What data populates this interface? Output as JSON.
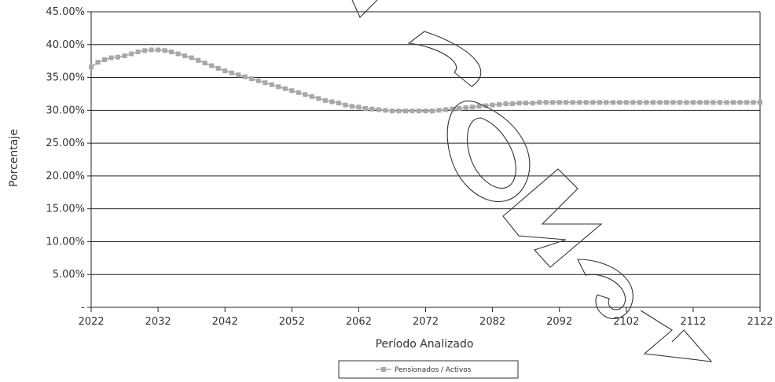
{
  "chart_data": {
    "type": "line",
    "ylabel": "Porcentaje",
    "xlabel": "Período Analizado",
    "xlim": [
      2022,
      2122
    ],
    "ylim": [
      0,
      45
    ],
    "x_ticks": [
      2022,
      2032,
      2042,
      2052,
      2062,
      2072,
      2082,
      2092,
      2102,
      2112,
      2122
    ],
    "y_ticks": [
      {
        "value": 0,
        "label": "-"
      },
      {
        "value": 5,
        "label": "5.00%"
      },
      {
        "value": 10,
        "label": "10.00%"
      },
      {
        "value": 15,
        "label": "15.00%"
      },
      {
        "value": 20,
        "label": "20.00%"
      },
      {
        "value": 25,
        "label": "25.00%"
      },
      {
        "value": 30,
        "label": "30.00%"
      },
      {
        "value": 35,
        "label": "35.00%"
      },
      {
        "value": 40,
        "label": "40.00%"
      },
      {
        "value": 45,
        "label": "45.00%"
      }
    ],
    "grid": true,
    "legend_position": "bottom-center",
    "series": [
      {
        "name": "Pensionados / Activos",
        "color": "#a8a8a8",
        "marker": "square",
        "x": [
          2022,
          2023,
          2024,
          2025,
          2026,
          2027,
          2028,
          2029,
          2030,
          2031,
          2032,
          2033,
          2034,
          2035,
          2036,
          2037,
          2038,
          2039,
          2040,
          2041,
          2042,
          2043,
          2044,
          2045,
          2046,
          2047,
          2048,
          2049,
          2050,
          2051,
          2052,
          2053,
          2054,
          2055,
          2056,
          2057,
          2058,
          2059,
          2060,
          2061,
          2062,
          2063,
          2064,
          2065,
          2066,
          2067,
          2068,
          2069,
          2070,
          2071,
          2072,
          2073,
          2074,
          2075,
          2076,
          2077,
          2078,
          2079,
          2080,
          2081,
          2082,
          2083,
          2084,
          2085,
          2086,
          2087,
          2088,
          2089,
          2090,
          2091,
          2092,
          2093,
          2094,
          2095,
          2096,
          2097,
          2098,
          2099,
          2100,
          2101,
          2102,
          2103,
          2104,
          2105,
          2106,
          2107,
          2108,
          2109,
          2110,
          2111,
          2112,
          2113,
          2114,
          2115,
          2116,
          2117,
          2118,
          2119,
          2120,
          2121,
          2122
        ],
        "values": [
          36.6,
          37.3,
          37.7,
          38.0,
          38.1,
          38.3,
          38.6,
          38.9,
          39.1,
          39.2,
          39.2,
          39.1,
          38.9,
          38.6,
          38.3,
          38.0,
          37.6,
          37.2,
          36.8,
          36.4,
          36.0,
          35.7,
          35.4,
          35.1,
          34.8,
          34.5,
          34.2,
          33.9,
          33.6,
          33.3,
          33.0,
          32.7,
          32.4,
          32.1,
          31.8,
          31.5,
          31.3,
          31.1,
          30.8,
          30.6,
          30.5,
          30.3,
          30.2,
          30.1,
          30.0,
          29.9,
          29.9,
          29.9,
          29.9,
          29.9,
          29.9,
          29.9,
          30.0,
          30.1,
          30.2,
          30.3,
          30.4,
          30.5,
          30.6,
          30.7,
          30.8,
          30.9,
          31.0,
          31.0,
          31.1,
          31.1,
          31.1,
          31.2,
          31.2,
          31.2,
          31.2,
          31.2,
          31.2,
          31.2,
          31.2,
          31.2,
          31.2,
          31.2,
          31.2,
          31.2,
          31.2,
          31.2,
          31.2,
          31.2,
          31.2,
          31.2,
          31.2,
          31.2,
          31.2,
          31.2,
          31.2,
          31.2,
          31.2,
          31.2,
          31.2,
          31.2,
          31.2,
          31.2,
          31.2,
          31.2,
          31.2
        ]
      }
    ]
  }
}
